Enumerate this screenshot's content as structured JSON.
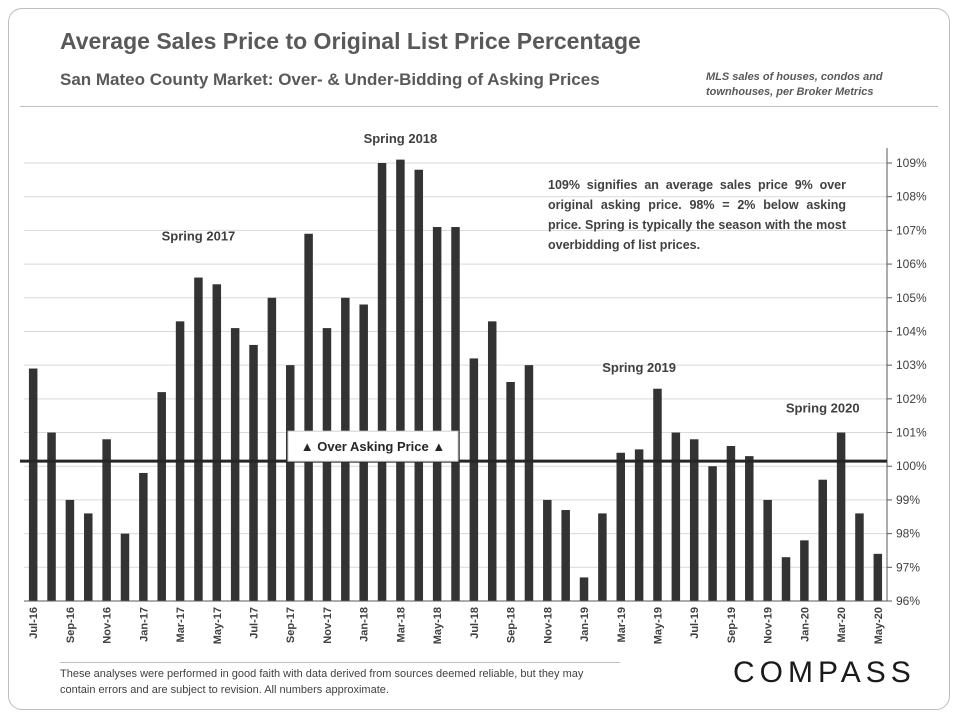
{
  "title": "Average Sales Price to Original List Price Percentage",
  "subtitle": "San Mateo County Market: Over- & Under-Bidding  of Asking Prices",
  "source_note": "MLS sales of houses, condos and townhouses, per Broker Metrics",
  "explanation": "109% signifies an average sales price 9% over original asking price. 98% = 2% below asking price. Spring is typically the season with the most overbidding of list prices.",
  "disclaimer": "These analyses  were performed in good faith with data derived from sources deemed reliable, but they may contain  errors and are subject to revision.  All numbers approximate.",
  "logo": "COMPASS",
  "chart_data": {
    "type": "bar",
    "categories": [
      "Jul-16",
      "Aug-16",
      "Sep-16",
      "Oct-16",
      "Nov-16",
      "Dec-16",
      "Jan-17",
      "Feb-17",
      "Mar-17",
      "Apr-17",
      "May-17",
      "Jun-17",
      "Jul-17",
      "Aug-17",
      "Sep-17",
      "Oct-17",
      "Nov-17",
      "Dec-17",
      "Jan-18",
      "Feb-18",
      "Mar-18",
      "Apr-18",
      "May-18",
      "Jun-18",
      "Jul-18",
      "Aug-18",
      "Sep-18",
      "Oct-18",
      "Nov-18",
      "Dec-18",
      "Jan-19",
      "Feb-19",
      "Mar-19",
      "Apr-19",
      "May-19",
      "Jun-19",
      "Jul-19",
      "Aug-19",
      "Sep-19",
      "Oct-19",
      "Nov-19",
      "Dec-19",
      "Jan-20",
      "Feb-20",
      "Mar-20",
      "Apr-20",
      "May-20"
    ],
    "tick_labels": [
      "Jul-16",
      "Sep-16",
      "Nov-16",
      "Jan-17",
      "Mar-17",
      "May-17",
      "Jul-17",
      "Sep-17",
      "Nov-17",
      "Jan-18",
      "Mar-18",
      "May-18",
      "Jul-18",
      "Sep-18",
      "Nov-18",
      "Jan-19",
      "Mar-19",
      "May-19",
      "Jul-19",
      "Sep-19",
      "Nov-19",
      "Jan-20",
      "Mar-20",
      "May-20"
    ],
    "values": [
      102.9,
      101.0,
      99.0,
      98.6,
      100.8,
      98.0,
      99.8,
      102.2,
      104.3,
      105.6,
      105.4,
      104.1,
      103.6,
      105.0,
      103.0,
      106.9,
      104.1,
      105.0,
      104.8,
      109.0,
      109.1,
      108.8,
      107.1,
      107.1,
      103.2,
      104.3,
      102.5,
      103.0,
      99.0,
      98.7,
      96.7,
      98.6,
      100.4,
      100.5,
      102.3,
      101.0,
      100.8,
      100.0,
      100.6,
      100.3,
      99.0,
      97.3,
      97.8,
      99.6,
      101.0,
      98.6,
      97.4
    ],
    "ylim": [
      96,
      109
    ],
    "y_ticks": [
      "96%",
      "97%",
      "98%",
      "99%",
      "100%",
      "101%",
      "102%",
      "103%",
      "104%",
      "105%",
      "106%",
      "107%",
      "108%",
      "109%"
    ],
    "y_axis_side": "right",
    "grid": true,
    "bar_color": "#333333",
    "reference_line": {
      "value": 100.15,
      "label": "▲ Over Asking Price ▲"
    },
    "annotations": [
      {
        "text": "Spring 2017",
        "category": "Apr-17",
        "level": 106.7
      },
      {
        "text": "Spring 2018",
        "category": "Mar-18",
        "level": 109.6
      },
      {
        "text": "Spring 2019",
        "category": "Apr-19",
        "level": 102.8
      },
      {
        "text": "Spring 2020",
        "category": "Feb-20",
        "level": 101.6
      }
    ]
  }
}
